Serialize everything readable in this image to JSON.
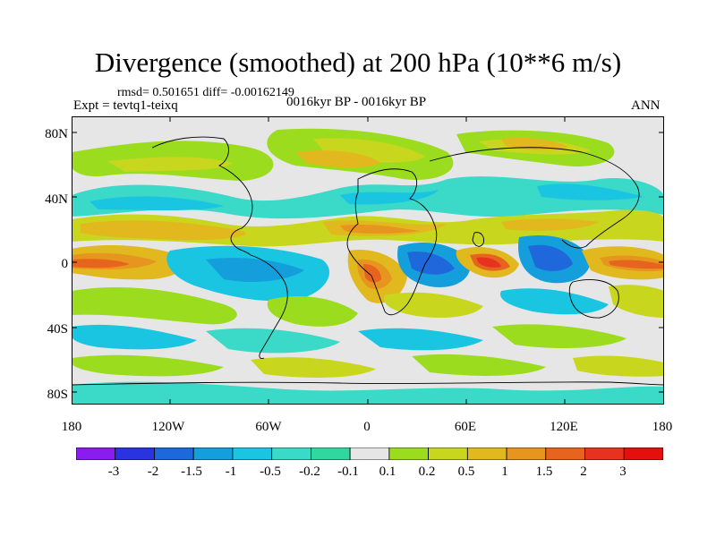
{
  "title": "Divergence (smoothed) at 200 hPa (10**6 m/s)",
  "stats": "rmsd= 0.501651 diff= -0.00162149",
  "experiment": "Expt = tevtq1-teixq",
  "period": "0016kyr BP - 0016kyr BP",
  "season": "ANN",
  "lat_labels": [
    "80N",
    "40N",
    "0",
    "40S",
    "80S"
  ],
  "lon_labels": [
    "180",
    "120W",
    "60W",
    "0",
    "60E",
    "120E",
    "180"
  ],
  "colorbar": {
    "labels": [
      "-3",
      "-2",
      "-1.5",
      "-1",
      "-0.5",
      "-0.2",
      "-0.1",
      "0.1",
      "0.2",
      "0.5",
      "1",
      "1.5",
      "2",
      "3"
    ],
    "colors": [
      "#8a1cf0",
      "#2a33e0",
      "#1e68dc",
      "#149fdc",
      "#19c5e0",
      "#3ad9c8",
      "#32d7a0",
      "#e6e6e6",
      "#9bdc1e",
      "#c8d71e",
      "#e1b91e",
      "#e6961e",
      "#e6641e",
      "#e6321e",
      "#e60f0f"
    ]
  }
}
